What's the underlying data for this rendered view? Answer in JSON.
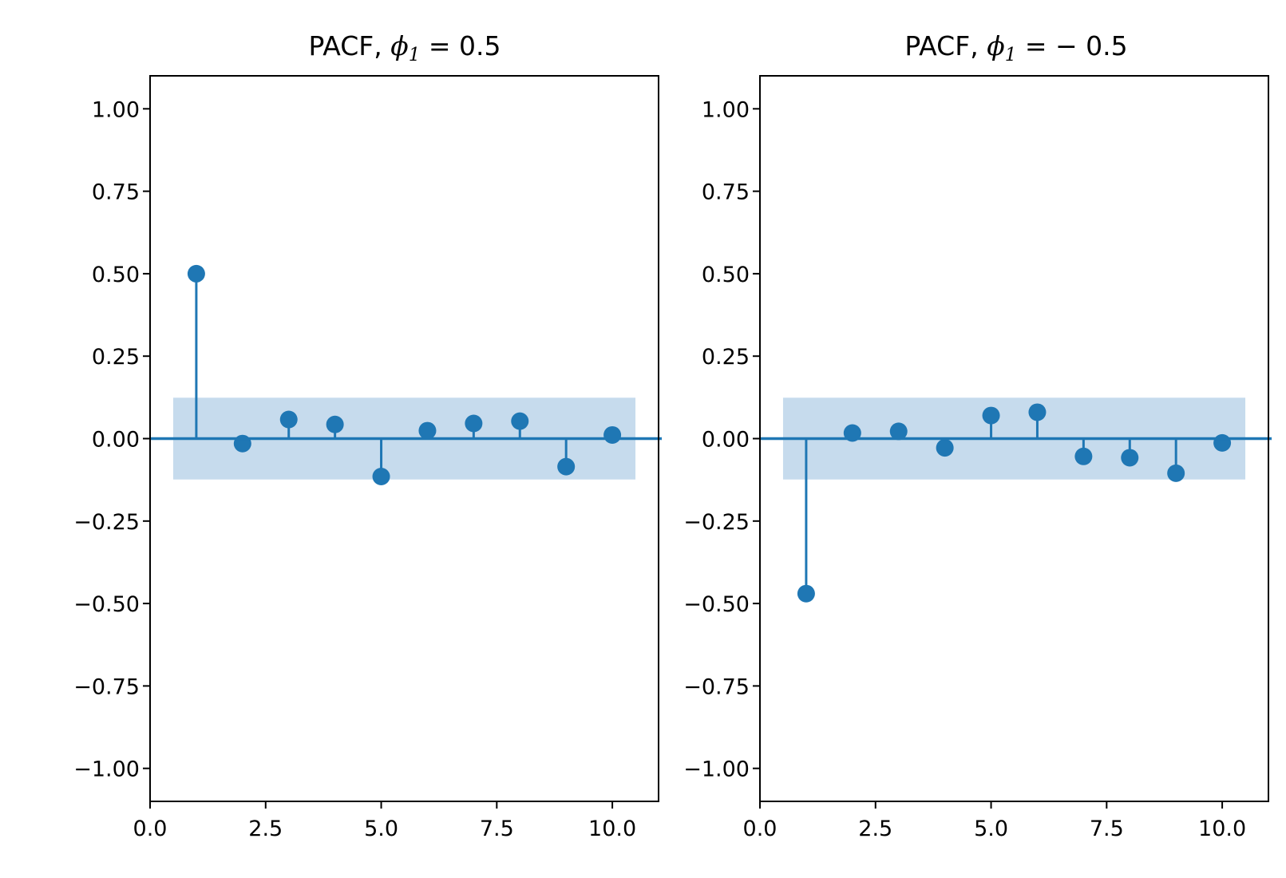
{
  "chart_data": [
    {
      "type": "stem",
      "title_prefix": "PACF, ",
      "title_symbol": "ϕ",
      "title_subscript": "1",
      "title_suffix": " = 0.5",
      "xlabel": "",
      "ylabel": "",
      "xlim": [
        0,
        11
      ],
      "ylim": [
        -1.1,
        1.1
      ],
      "xticks": [
        0,
        2.5,
        5,
        7.5,
        10
      ],
      "xtick_labels": [
        "0.0",
        "2.5",
        "5.0",
        "7.5",
        "10.0"
      ],
      "yticks": [
        1,
        0.75,
        0.5,
        0.25,
        0,
        -0.25,
        -0.5,
        -0.75,
        -1
      ],
      "ytick_labels": [
        "1.00",
        "0.75",
        "0.50",
        "0.25",
        "0.00",
        "−0.25",
        "−0.50",
        "−0.75",
        "−1.00"
      ],
      "x": [
        1,
        2,
        3,
        4,
        5,
        6,
        7,
        8,
        9,
        10
      ],
      "values": [
        0.5,
        -0.015,
        0.058,
        0.043,
        -0.115,
        0.024,
        0.046,
        0.053,
        -0.085,
        0.011
      ],
      "confidence_band": [
        -0.124,
        0.124
      ],
      "band_x_range": [
        0.5,
        10.5
      ],
      "grid": false,
      "color": "#1f77b4",
      "band_color": "#c6dbed"
    },
    {
      "type": "stem",
      "title_prefix": "PACF, ",
      "title_symbol": "ϕ",
      "title_subscript": "1",
      "title_suffix": " = − 0.5",
      "xlabel": "",
      "ylabel": "",
      "xlim": [
        0,
        11
      ],
      "ylim": [
        -1.1,
        1.1
      ],
      "xticks": [
        0,
        2.5,
        5,
        7.5,
        10
      ],
      "xtick_labels": [
        "0.0",
        "2.5",
        "5.0",
        "7.5",
        "10.0"
      ],
      "yticks": [
        1,
        0.75,
        0.5,
        0.25,
        0,
        -0.25,
        -0.5,
        -0.75,
        -1
      ],
      "ytick_labels": [
        "1.00",
        "0.75",
        "0.50",
        "0.25",
        "0.00",
        "−0.25",
        "−0.50",
        "−0.75",
        "−1.00"
      ],
      "x": [
        1,
        2,
        3,
        4,
        5,
        6,
        7,
        8,
        9,
        10
      ],
      "values": [
        -0.47,
        0.017,
        0.022,
        -0.028,
        0.07,
        0.08,
        -0.054,
        -0.058,
        -0.105,
        -0.013
      ],
      "confidence_band": [
        -0.124,
        0.124
      ],
      "band_x_range": [
        0.5,
        10.5
      ],
      "grid": false,
      "color": "#1f77b4",
      "band_color": "#c6dbed"
    }
  ]
}
